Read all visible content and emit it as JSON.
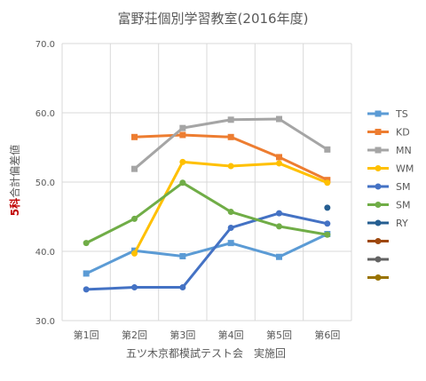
{
  "chart_data": {
    "type": "line",
    "title": "富野荘個別学習教室(2016年度)",
    "xlabel": "五ツ木京都模試テスト会　実施回",
    "ylabel_red": "5科",
    "ylabel_rest": "合計偏差値",
    "categories": [
      "第1回",
      "第2回",
      "第3回",
      "第4回",
      "第5回",
      "第6回"
    ],
    "ylim": [
      30,
      70
    ],
    "yticks": [
      "30.0",
      "40.0",
      "50.0",
      "60.0",
      "70.0"
    ],
    "grid": true,
    "legend_position": "right",
    "series": [
      {
        "name": "TS",
        "color": "#5b9bd5",
        "marker": "square",
        "values": [
          36.8,
          40.1,
          39.3,
          41.2,
          39.2,
          42.5
        ]
      },
      {
        "name": "KD",
        "color": "#ed7d31",
        "marker": "square",
        "values": [
          null,
          56.5,
          56.8,
          56.5,
          53.6,
          50.3
        ]
      },
      {
        "name": "MN",
        "color": "#a5a5a5",
        "marker": "square",
        "values": [
          null,
          51.9,
          57.8,
          59.0,
          59.1,
          54.7
        ]
      },
      {
        "name": "WM",
        "color": "#ffc000",
        "marker": "circle",
        "values": [
          null,
          39.7,
          52.9,
          52.3,
          52.7,
          49.9
        ]
      },
      {
        "name": "SM",
        "color": "#4472c4",
        "marker": "circle",
        "values": [
          34.5,
          34.8,
          34.8,
          43.4,
          45.5,
          44.0
        ]
      },
      {
        "name": "SM",
        "color": "#70ad47",
        "marker": "circle",
        "values": [
          41.2,
          44.7,
          49.9,
          45.7,
          43.6,
          42.4
        ]
      },
      {
        "name": "RY",
        "color": "#255e91",
        "marker": "circle",
        "values": [
          null,
          null,
          null,
          null,
          null,
          46.3
        ]
      },
      {
        "name": "",
        "color": "#9e480e",
        "marker": "circle",
        "values": [
          null,
          null,
          null,
          null,
          null,
          null
        ]
      },
      {
        "name": "",
        "color": "#636363",
        "marker": "circle",
        "values": [
          null,
          null,
          null,
          null,
          null,
          null
        ]
      },
      {
        "name": "",
        "color": "#997300",
        "marker": "circle",
        "values": [
          null,
          null,
          null,
          null,
          null,
          null
        ]
      }
    ]
  }
}
